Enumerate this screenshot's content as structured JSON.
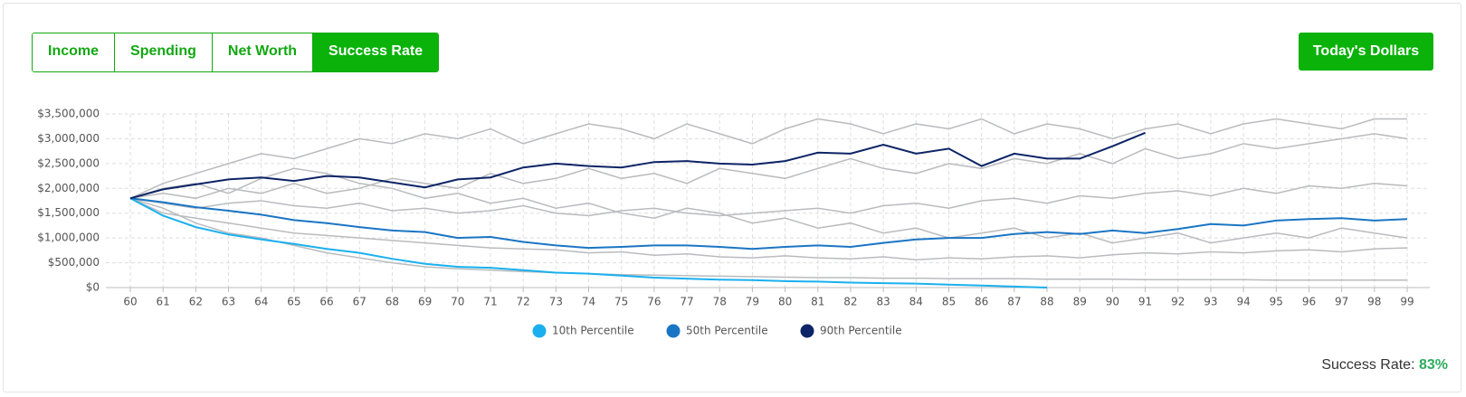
{
  "buttons": [
    "Income",
    "Spending",
    "Net Worth",
    "Success Rate"
  ],
  "active_button": 3,
  "toggle": "Today's Dollars",
  "chart_data": {
    "type": "line",
    "x": [
      60,
      61,
      62,
      63,
      64,
      65,
      66,
      67,
      68,
      69,
      70,
      71,
      72,
      73,
      74,
      75,
      76,
      77,
      78,
      79,
      80,
      81,
      82,
      83,
      84,
      85,
      86,
      87,
      88,
      89,
      90,
      91,
      92,
      93,
      94,
      95,
      96,
      97,
      98,
      99
    ],
    "xlim": [
      60,
      99
    ],
    "xticks": [
      60,
      61,
      62,
      63,
      64,
      65,
      66,
      67,
      68,
      69,
      70,
      71,
      72,
      73,
      74,
      75,
      76,
      77,
      78,
      79,
      80,
      81,
      82,
      83,
      84,
      85,
      86,
      87,
      88,
      89,
      90,
      91,
      92,
      93,
      94,
      95,
      96,
      97,
      98,
      99
    ],
    "ylim": [
      0,
      3500000
    ],
    "yticks": [
      {
        "value": 0,
        "label": "$0"
      },
      {
        "value": 500000,
        "label": "$500,000"
      },
      {
        "value": 1000000,
        "label": "$1,000,000"
      },
      {
        "value": 1500000,
        "label": "$1,500,000"
      },
      {
        "value": 2000000,
        "label": "$2,000,000"
      },
      {
        "value": 2500000,
        "label": "$2,500,000"
      },
      {
        "value": 3000000,
        "label": "$3,000,000"
      },
      {
        "value": 3500000,
        "label": "$3,500,000"
      }
    ],
    "grid": true,
    "series": [
      {
        "color": "#b9bbbe",
        "values": [
          1800000,
          2100000,
          2300000,
          2500000,
          2700000,
          2600000,
          2800000,
          3000000,
          2900000,
          3100000,
          3000000,
          3200000,
          2900000,
          3100000,
          3300000,
          3200000,
          3000000,
          3300000,
          3100000,
          2900000,
          3200000,
          3400000,
          3300000,
          3100000,
          3300000,
          3200000,
          3400000,
          3100000,
          3300000,
          3200000,
          3000000,
          3200000,
          3300000,
          3100000,
          3300000,
          3400000,
          3300000,
          3200000,
          3400000,
          3400000
        ]
      },
      {
        "color": "#b9bbbe",
        "values": [
          1800000,
          1900000,
          1800000,
          2000000,
          1900000,
          2100000,
          1900000,
          2000000,
          2200000,
          2100000,
          2000000,
          2300000,
          2100000,
          2200000,
          2400000,
          2200000,
          2300000,
          2100000,
          2400000,
          2300000,
          2200000,
          2400000,
          2600000,
          2400000,
          2300000,
          2500000,
          2400000,
          2600000,
          2500000,
          2700000,
          2500000,
          2800000,
          2600000,
          2700000,
          2900000,
          2800000,
          2900000,
          3000000,
          3100000,
          3000000
        ]
      },
      {
        "color": "#b9bbbe",
        "values": [
          1800000,
          1700000,
          1600000,
          1700000,
          1750000,
          1650000,
          1600000,
          1700000,
          1550000,
          1600000,
          1500000,
          1550000,
          1650000,
          1500000,
          1450000,
          1550000,
          1600000,
          1500000,
          1450000,
          1500000,
          1550000,
          1600000,
          1500000,
          1650000,
          1700000,
          1600000,
          1750000,
          1800000,
          1700000,
          1850000,
          1800000,
          1900000,
          1950000,
          1850000,
          2000000,
          1900000,
          2050000,
          2000000,
          2100000,
          2050000
        ]
      },
      {
        "color": "#b9bbbe",
        "values": [
          1800000,
          1500000,
          1400000,
          1300000,
          1200000,
          1100000,
          1050000,
          1000000,
          950000,
          900000,
          850000,
          800000,
          780000,
          760000,
          700000,
          720000,
          650000,
          680000,
          620000,
          600000,
          640000,
          600000,
          580000,
          620000,
          560000,
          600000,
          580000,
          620000,
          640000,
          600000,
          660000,
          700000,
          680000,
          720000,
          700000,
          740000,
          760000,
          720000,
          780000,
          800000
        ]
      },
      {
        "color": "#b9bbbe",
        "values": [
          1800000,
          1600000,
          1300000,
          1100000,
          1000000,
          850000,
          700000,
          600000,
          500000,
          420000,
          380000,
          350000,
          320000,
          300000,
          280000,
          260000,
          250000,
          240000,
          230000,
          220000,
          210000,
          200000,
          200000,
          190000,
          190000,
          180000,
          180000,
          180000,
          170000,
          170000,
          170000,
          160000,
          160000,
          160000,
          160000,
          150000,
          150000,
          150000,
          150000,
          150000
        ]
      },
      {
        "color": "#b9bbbe",
        "values": [
          1800000,
          2000000,
          2100000,
          1900000,
          2200000,
          2400000,
          2300000,
          2100000,
          2000000,
          1800000,
          1900000,
          1700000,
          1800000,
          1600000,
          1700000,
          1500000,
          1400000,
          1600000,
          1500000,
          1300000,
          1400000,
          1200000,
          1300000,
          1100000,
          1200000,
          1000000,
          1100000,
          1200000,
          1000000,
          1100000,
          900000,
          1000000,
          1100000,
          900000,
          1000000,
          1100000,
          1000000,
          1200000,
          1100000,
          1000000
        ]
      },
      {
        "name": "10th Percentile",
        "color": "#1ab0ef",
        "values": [
          1800000,
          1450000,
          1220000,
          1070000,
          970000,
          880000,
          780000,
          700000,
          580000,
          480000,
          420000,
          400000,
          350000,
          300000,
          280000,
          240000,
          200000,
          180000,
          160000,
          150000,
          130000,
          120000,
          100000,
          90000,
          80000,
          60000,
          40000,
          20000,
          0,
          null,
          null,
          null,
          null,
          null,
          null,
          null,
          null,
          null,
          null,
          null
        ]
      },
      {
        "name": "50th Percentile",
        "color": "#1a75c4",
        "values": [
          1800000,
          1720000,
          1620000,
          1550000,
          1470000,
          1360000,
          1300000,
          1220000,
          1150000,
          1120000,
          1000000,
          1020000,
          920000,
          850000,
          800000,
          820000,
          850000,
          850000,
          820000,
          780000,
          820000,
          850000,
          820000,
          900000,
          970000,
          1000000,
          1000000,
          1080000,
          1120000,
          1080000,
          1150000,
          1100000,
          1180000,
          1280000,
          1250000,
          1350000,
          1380000,
          1400000,
          1350000,
          1380000
        ]
      },
      {
        "name": "90th Percentile",
        "color": "#0d2466",
        "values": [
          1800000,
          1980000,
          2080000,
          2180000,
          2220000,
          2150000,
          2250000,
          2220000,
          2120000,
          2020000,
          2180000,
          2220000,
          2420000,
          2500000,
          2450000,
          2420000,
          2530000,
          2550000,
          2500000,
          2480000,
          2550000,
          2720000,
          2700000,
          2880000,
          2700000,
          2800000,
          2450000,
          2700000,
          2600000,
          2600000,
          2850000,
          3120000,
          null,
          null,
          null,
          null,
          null,
          null,
          null,
          null
        ]
      }
    ]
  },
  "success_rate": {
    "label": "Success Rate:",
    "value": "83%"
  }
}
